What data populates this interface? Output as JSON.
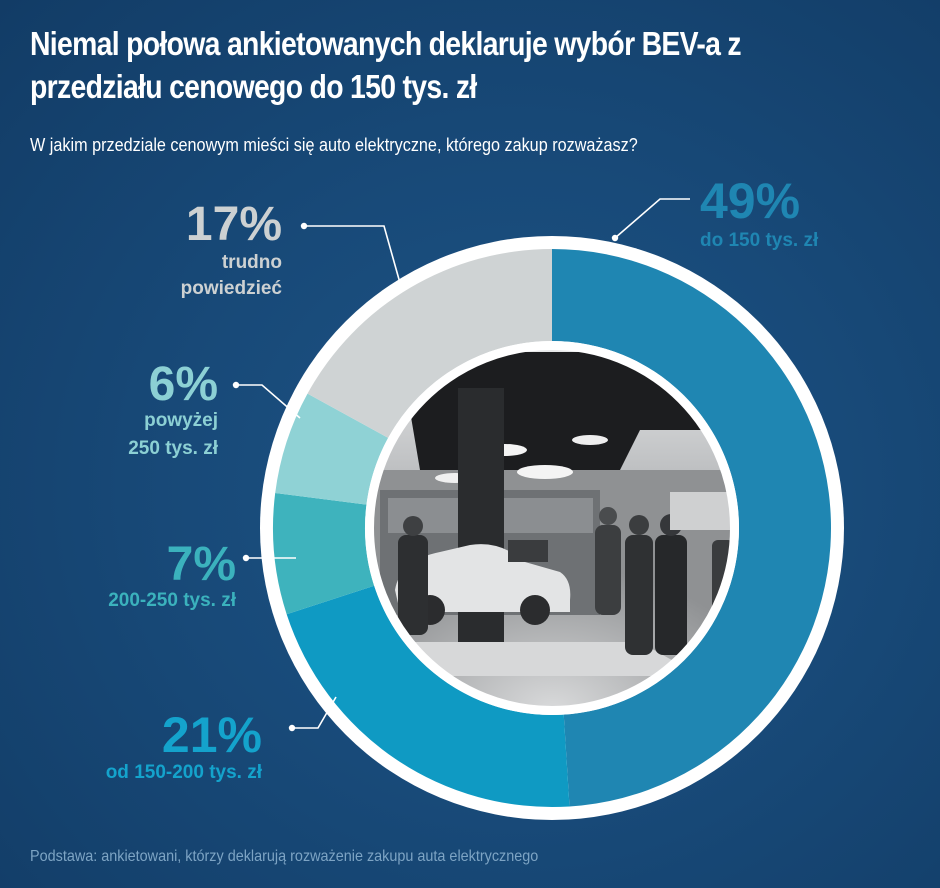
{
  "title": "Niemal połowa ankietowanych deklaruje wybór BEV-a z przedziału cenowego do 150 tys. zł",
  "subtitle": "W jakim przedziale cenowym mieści się auto elektryczne, którego zakup rozważasz?",
  "footnote": "Podstawa: ankietowani, którzy deklarują rozważenie zakupu auta elektrycznego",
  "colors": {
    "background": "#184a79",
    "ring_outline": "#ffffff"
  },
  "chart_data": {
    "type": "donut",
    "unit": "%",
    "center_image": "car-showroom-photo",
    "slices": [
      {
        "percent_label": "49%",
        "value": 49,
        "label_lines": [
          "do 150 tys. zł"
        ],
        "color": "#1f86b2",
        "label_color": "#1f86b2"
      },
      {
        "percent_label": "21%",
        "value": 21,
        "label_lines": [
          "od 150-200 tys. zł"
        ],
        "color": "#0f9ac3",
        "label_color": "#14a3cc"
      },
      {
        "percent_label": "7%",
        "value": 7,
        "label_lines": [
          "200-250 tys. zł"
        ],
        "color": "#3eb3bd",
        "label_color": "#3bb2bd"
      },
      {
        "percent_label": "6%",
        "value": 6,
        "label_lines": [
          "powyżej",
          "250 tys. zł"
        ],
        "color": "#8fd2d5",
        "label_color": "#8cd0d4"
      },
      {
        "percent_label": "17%",
        "value": 17,
        "label_lines": [
          "trudno",
          "powiedzieć"
        ],
        "color": "#cfd3d4",
        "label_color": "#cdd1d2"
      }
    ]
  }
}
